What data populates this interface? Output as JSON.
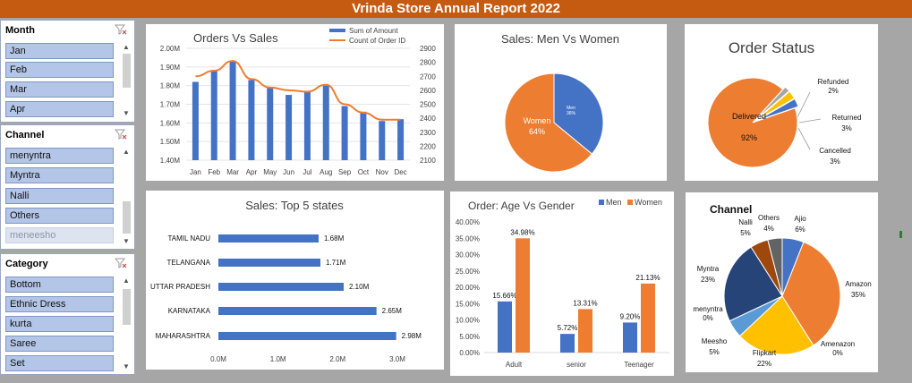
{
  "banner": {
    "title": "Vrinda Store Annual Report 2022"
  },
  "slicers": {
    "month": {
      "title": "Month",
      "items": [
        "Jan",
        "Feb",
        "Mar",
        "Apr"
      ]
    },
    "channel": {
      "title": "Channel",
      "items": [
        "menyntra",
        "Myntra",
        "Nalli",
        "Others",
        "meneesho"
      ]
    },
    "category": {
      "title": "Category",
      "items": [
        "Bottom",
        "Ethnic Dress",
        "kurta",
        "Saree",
        "Set"
      ]
    }
  },
  "chart_data": [
    {
      "id": "orders_vs_sales",
      "type": "bar+line",
      "title": "Orders Vs Sales",
      "categories": [
        "Jan",
        "Feb",
        "Mar",
        "Apr",
        "May",
        "Jun",
        "Jul",
        "Aug",
        "Sep",
        "Oct",
        "Nov",
        "Dec"
      ],
      "series": [
        {
          "name": "Sum of Amount",
          "type": "bar",
          "axis": "left",
          "color": "#4472c4",
          "values": [
            1.82,
            1.88,
            1.93,
            1.83,
            1.79,
            1.75,
            1.77,
            1.8,
            1.69,
            1.66,
            1.61,
            1.62
          ]
        },
        {
          "name": "Count of Order ID",
          "type": "line",
          "axis": "right",
          "color": "#ed7d31",
          "values": [
            2700,
            2740,
            2810,
            2680,
            2620,
            2600,
            2590,
            2640,
            2500,
            2440,
            2390,
            2390
          ]
        }
      ],
      "left_axis": {
        "ticks": [
          "2.00M",
          "1.90M",
          "1.80M",
          "1.70M",
          "1.60M",
          "1.50M",
          "1.40M"
        ],
        "min": 1.4,
        "max": 2.0
      },
      "right_axis": {
        "ticks": [
          "2900",
          "2800",
          "2700",
          "2600",
          "2500",
          "2400",
          "2300",
          "2200",
          "2100"
        ],
        "min": 2100,
        "max": 2900
      },
      "legend": "top-right"
    },
    {
      "id": "men_vs_women",
      "type": "pie",
      "title": "Sales: Men Vs Women",
      "slices": [
        {
          "name": "Men",
          "value": 36,
          "label": "36%",
          "color": "#4472c4"
        },
        {
          "name": "Women",
          "value": 64,
          "label": "64%",
          "color": "#ed7d31"
        }
      ]
    },
    {
      "id": "order_status",
      "type": "pie",
      "title": "Order Status",
      "slices": [
        {
          "name": "Delivered",
          "value": 92,
          "label": "92%",
          "color": "#ed7d31"
        },
        {
          "name": "Refunded",
          "value": 2,
          "label": "2%",
          "color": "#a5a5a5"
        },
        {
          "name": "Returned",
          "value": 3,
          "label": "3%",
          "color": "#ffc000"
        },
        {
          "name": "Cancelled",
          "value": 3,
          "label": "3%",
          "color": "#4472c4"
        }
      ]
    },
    {
      "id": "top5_states",
      "type": "bar",
      "orientation": "horizontal",
      "title": "Sales: Top 5 states",
      "categories": [
        "TAMIL NADU",
        "TELANGANA",
        "UTTAR PRADESH",
        "KARNATAKA",
        "MAHARASHTRA"
      ],
      "values": [
        1.68,
        1.71,
        2.1,
        2.65,
        2.98
      ],
      "labels": [
        "1.68M",
        "1.71M",
        "2.10M",
        "2.65M",
        "2.98M"
      ],
      "x_ticks": [
        "0.0M",
        "1.0M",
        "2.0M",
        "3.0M"
      ],
      "xlim": [
        0,
        3.4
      ],
      "color": "#4472c4"
    },
    {
      "id": "age_vs_gender",
      "type": "bar",
      "title": "Order: Age Vs Gender",
      "categories": [
        "Adult",
        "senior",
        "Teenager"
      ],
      "series": [
        {
          "name": "Men",
          "color": "#4472c4",
          "values": [
            15.66,
            5.72,
            9.2
          ],
          "labels": [
            "15.66%",
            "5.72%",
            "9.20%"
          ]
        },
        {
          "name": "Women",
          "color": "#ed7d31",
          "values": [
            34.98,
            13.31,
            21.13
          ],
          "labels": [
            "34.98%",
            "13.31%",
            "21.13%"
          ]
        }
      ],
      "y_ticks": [
        "40.00%",
        "35.00%",
        "30.00%",
        "25.00%",
        "20.00%",
        "15.00%",
        "10.00%",
        "5.00%",
        "0.00%"
      ],
      "ylim": [
        0,
        40
      ],
      "legend": "top-right"
    },
    {
      "id": "channel",
      "type": "pie",
      "title": "Channel",
      "slices": [
        {
          "name": "Ajio",
          "value": 6,
          "label": "6%",
          "color": "#4472c4"
        },
        {
          "name": "Amazon",
          "value": 35,
          "label": "35%",
          "color": "#ed7d31"
        },
        {
          "name": "Amenazon",
          "value": 0,
          "label": "0%",
          "color": "#a5a5a5"
        },
        {
          "name": "Flipkart",
          "value": 22,
          "label": "22%",
          "color": "#ffc000"
        },
        {
          "name": "Meesho",
          "value": 5,
          "label": "5%",
          "color": "#5b9bd5"
        },
        {
          "name": "menyntra",
          "value": 0,
          "label": "0%",
          "color": "#70ad47"
        },
        {
          "name": "Myntra",
          "value": 23,
          "label": "23%",
          "color": "#264478"
        },
        {
          "name": "Nalli",
          "value": 5,
          "label": "5%",
          "color": "#9e480e"
        },
        {
          "name": "Others",
          "value": 4,
          "label": "4%",
          "color": "#636363"
        }
      ]
    }
  ]
}
